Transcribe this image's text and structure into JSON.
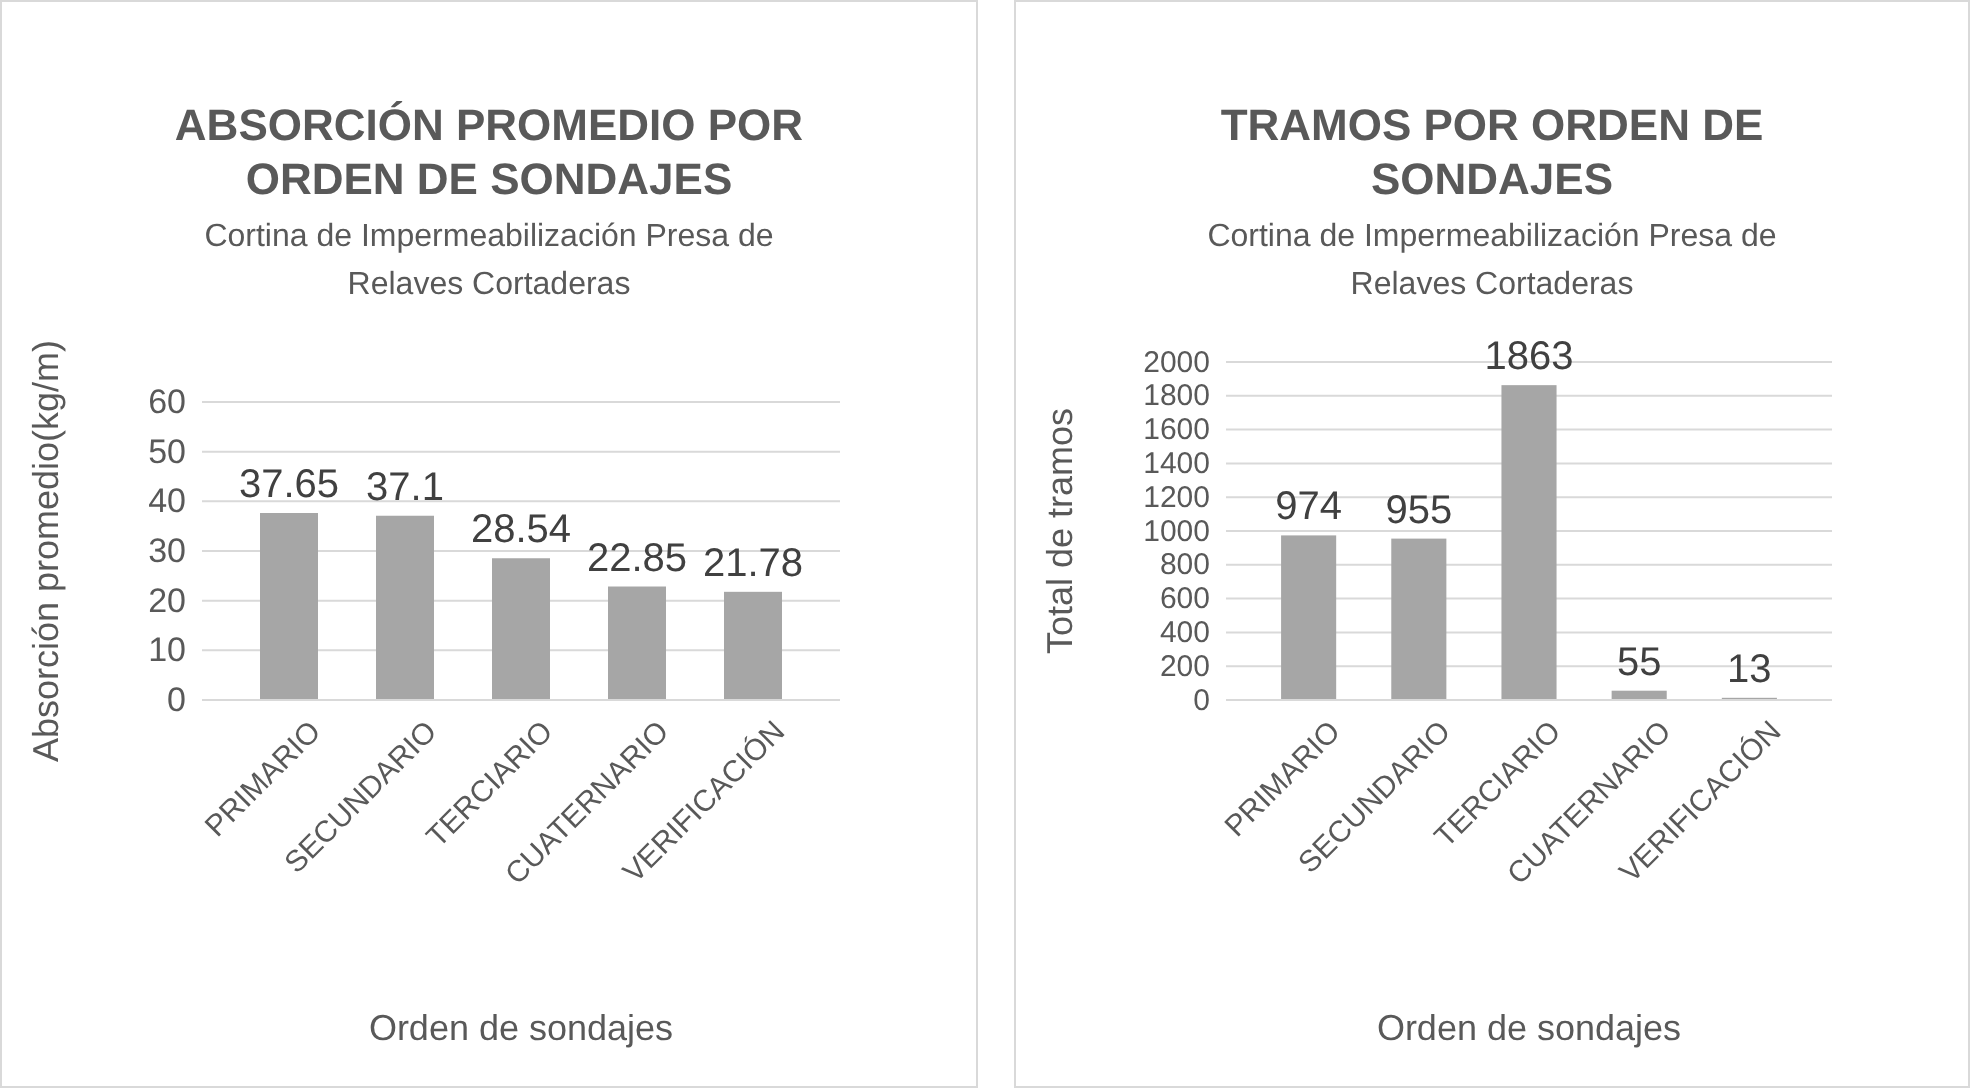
{
  "chart_data": [
    {
      "type": "bar",
      "title": "ABSORCIÓN PROMEDIO POR ORDEN DE SONDAJES",
      "subtitle": "Cortina de Impermeabilización Presa de Relaves Cortaderas",
      "xlabel": "Orden de sondajes",
      "ylabel": "Absorción promedio(kg/m)",
      "categories": [
        "PRIMARIO",
        "SECUNDARIO",
        "TERCIARIO",
        "CUATERNARIO",
        "VERIFICACIÓN"
      ],
      "values": [
        37.65,
        37.1,
        28.54,
        22.85,
        21.78
      ],
      "color": "#a6a6a6",
      "ylim": [
        0,
        60
      ],
      "yticks": [
        0,
        10,
        20,
        30,
        40,
        50,
        60
      ],
      "grid": "y",
      "data_labels": true
    },
    {
      "type": "bar",
      "title": "TRAMOS POR ORDEN DE SONDAJES",
      "subtitle": "Cortina de Impermeabilización Presa de Relaves Cortaderas",
      "xlabel": "Orden de sondajes",
      "ylabel": "Total de tramos",
      "categories": [
        "PRIMARIO",
        "SECUNDARIO",
        "TERCIARIO",
        "CUATERNARIO",
        "VERIFICACIÓN"
      ],
      "values": [
        974,
        955,
        1863,
        55,
        13
      ],
      "color": "#a6a6a6",
      "ylim": [
        0,
        2000
      ],
      "yticks": [
        0,
        200,
        400,
        600,
        800,
        1000,
        1200,
        1400,
        1600,
        1800,
        2000
      ],
      "grid": "y",
      "data_labels": true
    }
  ]
}
